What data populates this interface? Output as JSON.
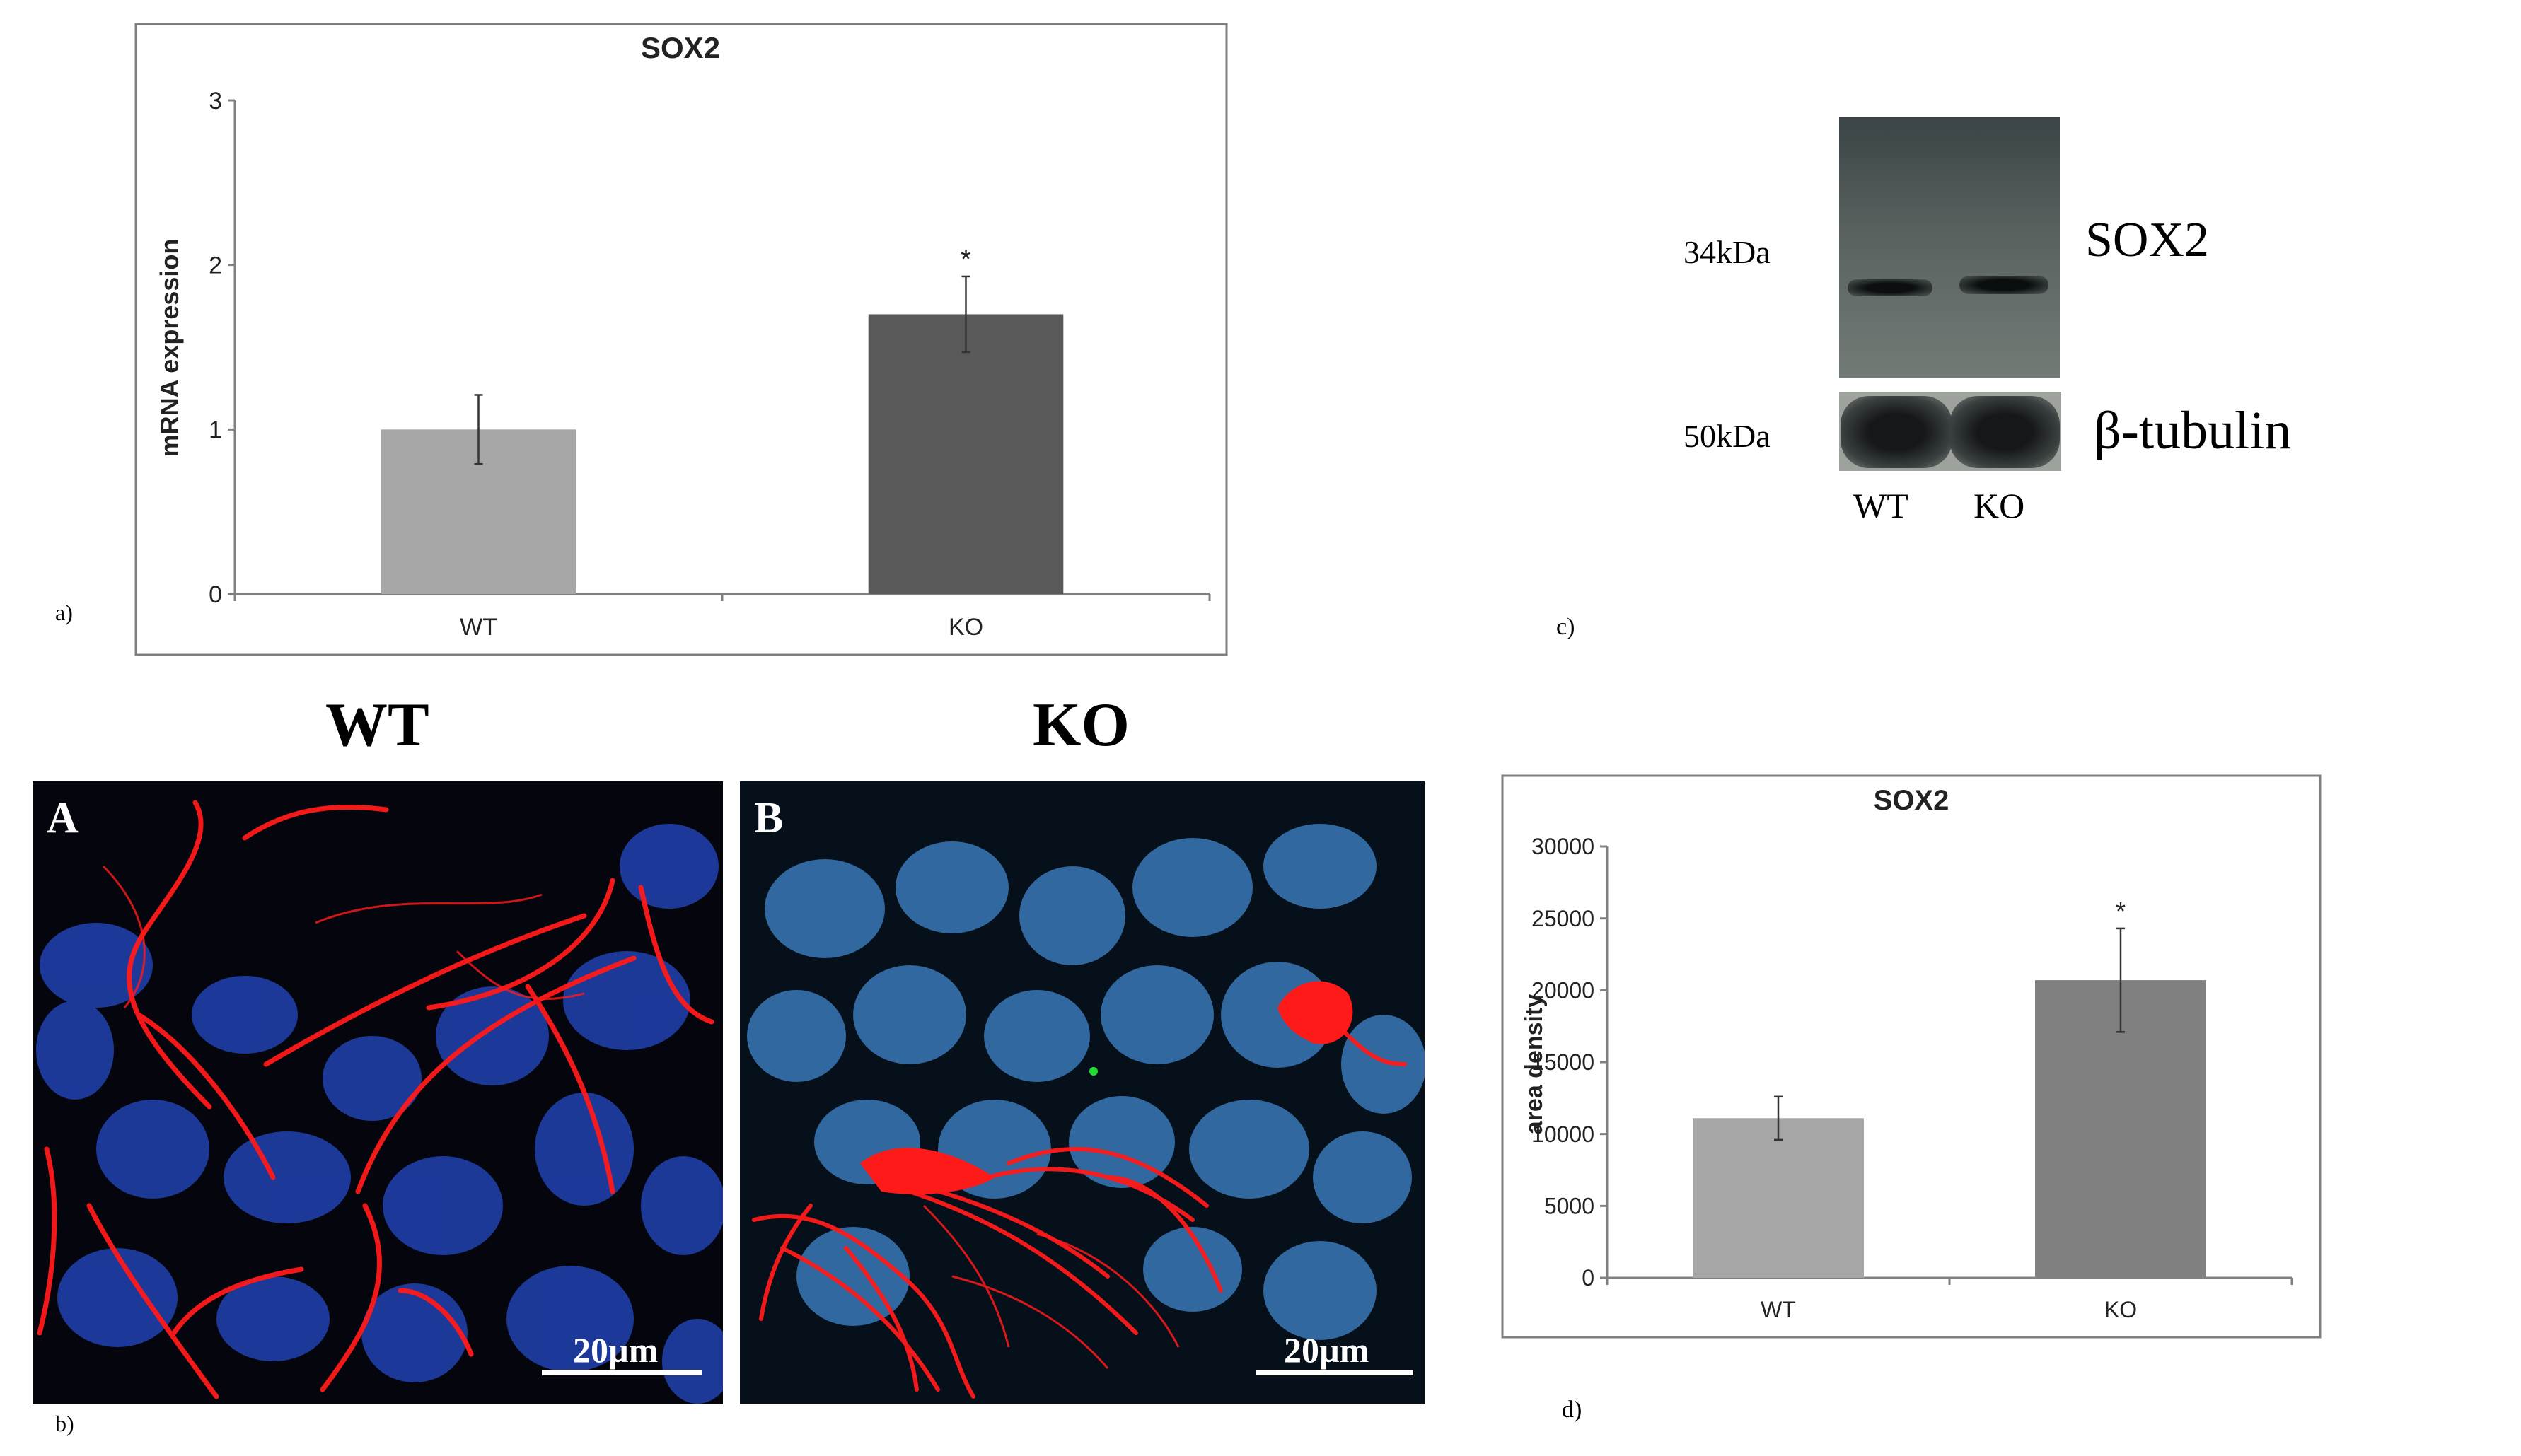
{
  "figure": {
    "panel_labels": {
      "a": "a)",
      "b": "b)",
      "c": "c)",
      "d": "d)"
    },
    "micrograph": {
      "group_labels": {
        "left": "WT",
        "right": "KO"
      },
      "sub_labels": {
        "left": "A",
        "right": "B"
      },
      "scale_bar_label": "20µm",
      "colors": {
        "background": "#05060d",
        "nuclei": "#1f3fa8",
        "nuclei_ko": "#3a78b8",
        "fibers": "#ff1a1a"
      }
    },
    "western_blot": {
      "markers": [
        "34kDa",
        "50kDa"
      ],
      "bands": [
        "SOX2",
        "β-tubulin"
      ],
      "lanes": [
        "WT",
        "KO"
      ]
    }
  },
  "chart_data": [
    {
      "type": "bar",
      "title": "SOX2",
      "ylabel": "mRNA expression",
      "xlabel": "",
      "categories": [
        "WT",
        "KO"
      ],
      "values": [
        1.0,
        1.7
      ],
      "errors": [
        0.21,
        0.23
      ],
      "ylim": [
        0,
        3
      ],
      "yticks": [
        "0",
        "1",
        "2",
        "3"
      ],
      "bar_colors": [
        "#a6a6a6",
        "#595959"
      ],
      "annotation": "*",
      "grid": false
    },
    {
      "type": "bar",
      "title": "SOX2",
      "ylabel": "area density",
      "xlabel": "",
      "categories": [
        "WT",
        "KO"
      ],
      "values": [
        11100,
        20700
      ],
      "errors": [
        1500,
        3600
      ],
      "ylim": [
        0,
        30000
      ],
      "yticks": [
        "0",
        "5000",
        "10000",
        "15000",
        "20000",
        "25000",
        "30000"
      ],
      "bar_colors": [
        "#a6a6a6",
        "#808080"
      ],
      "annotation": "*",
      "grid": false
    }
  ]
}
